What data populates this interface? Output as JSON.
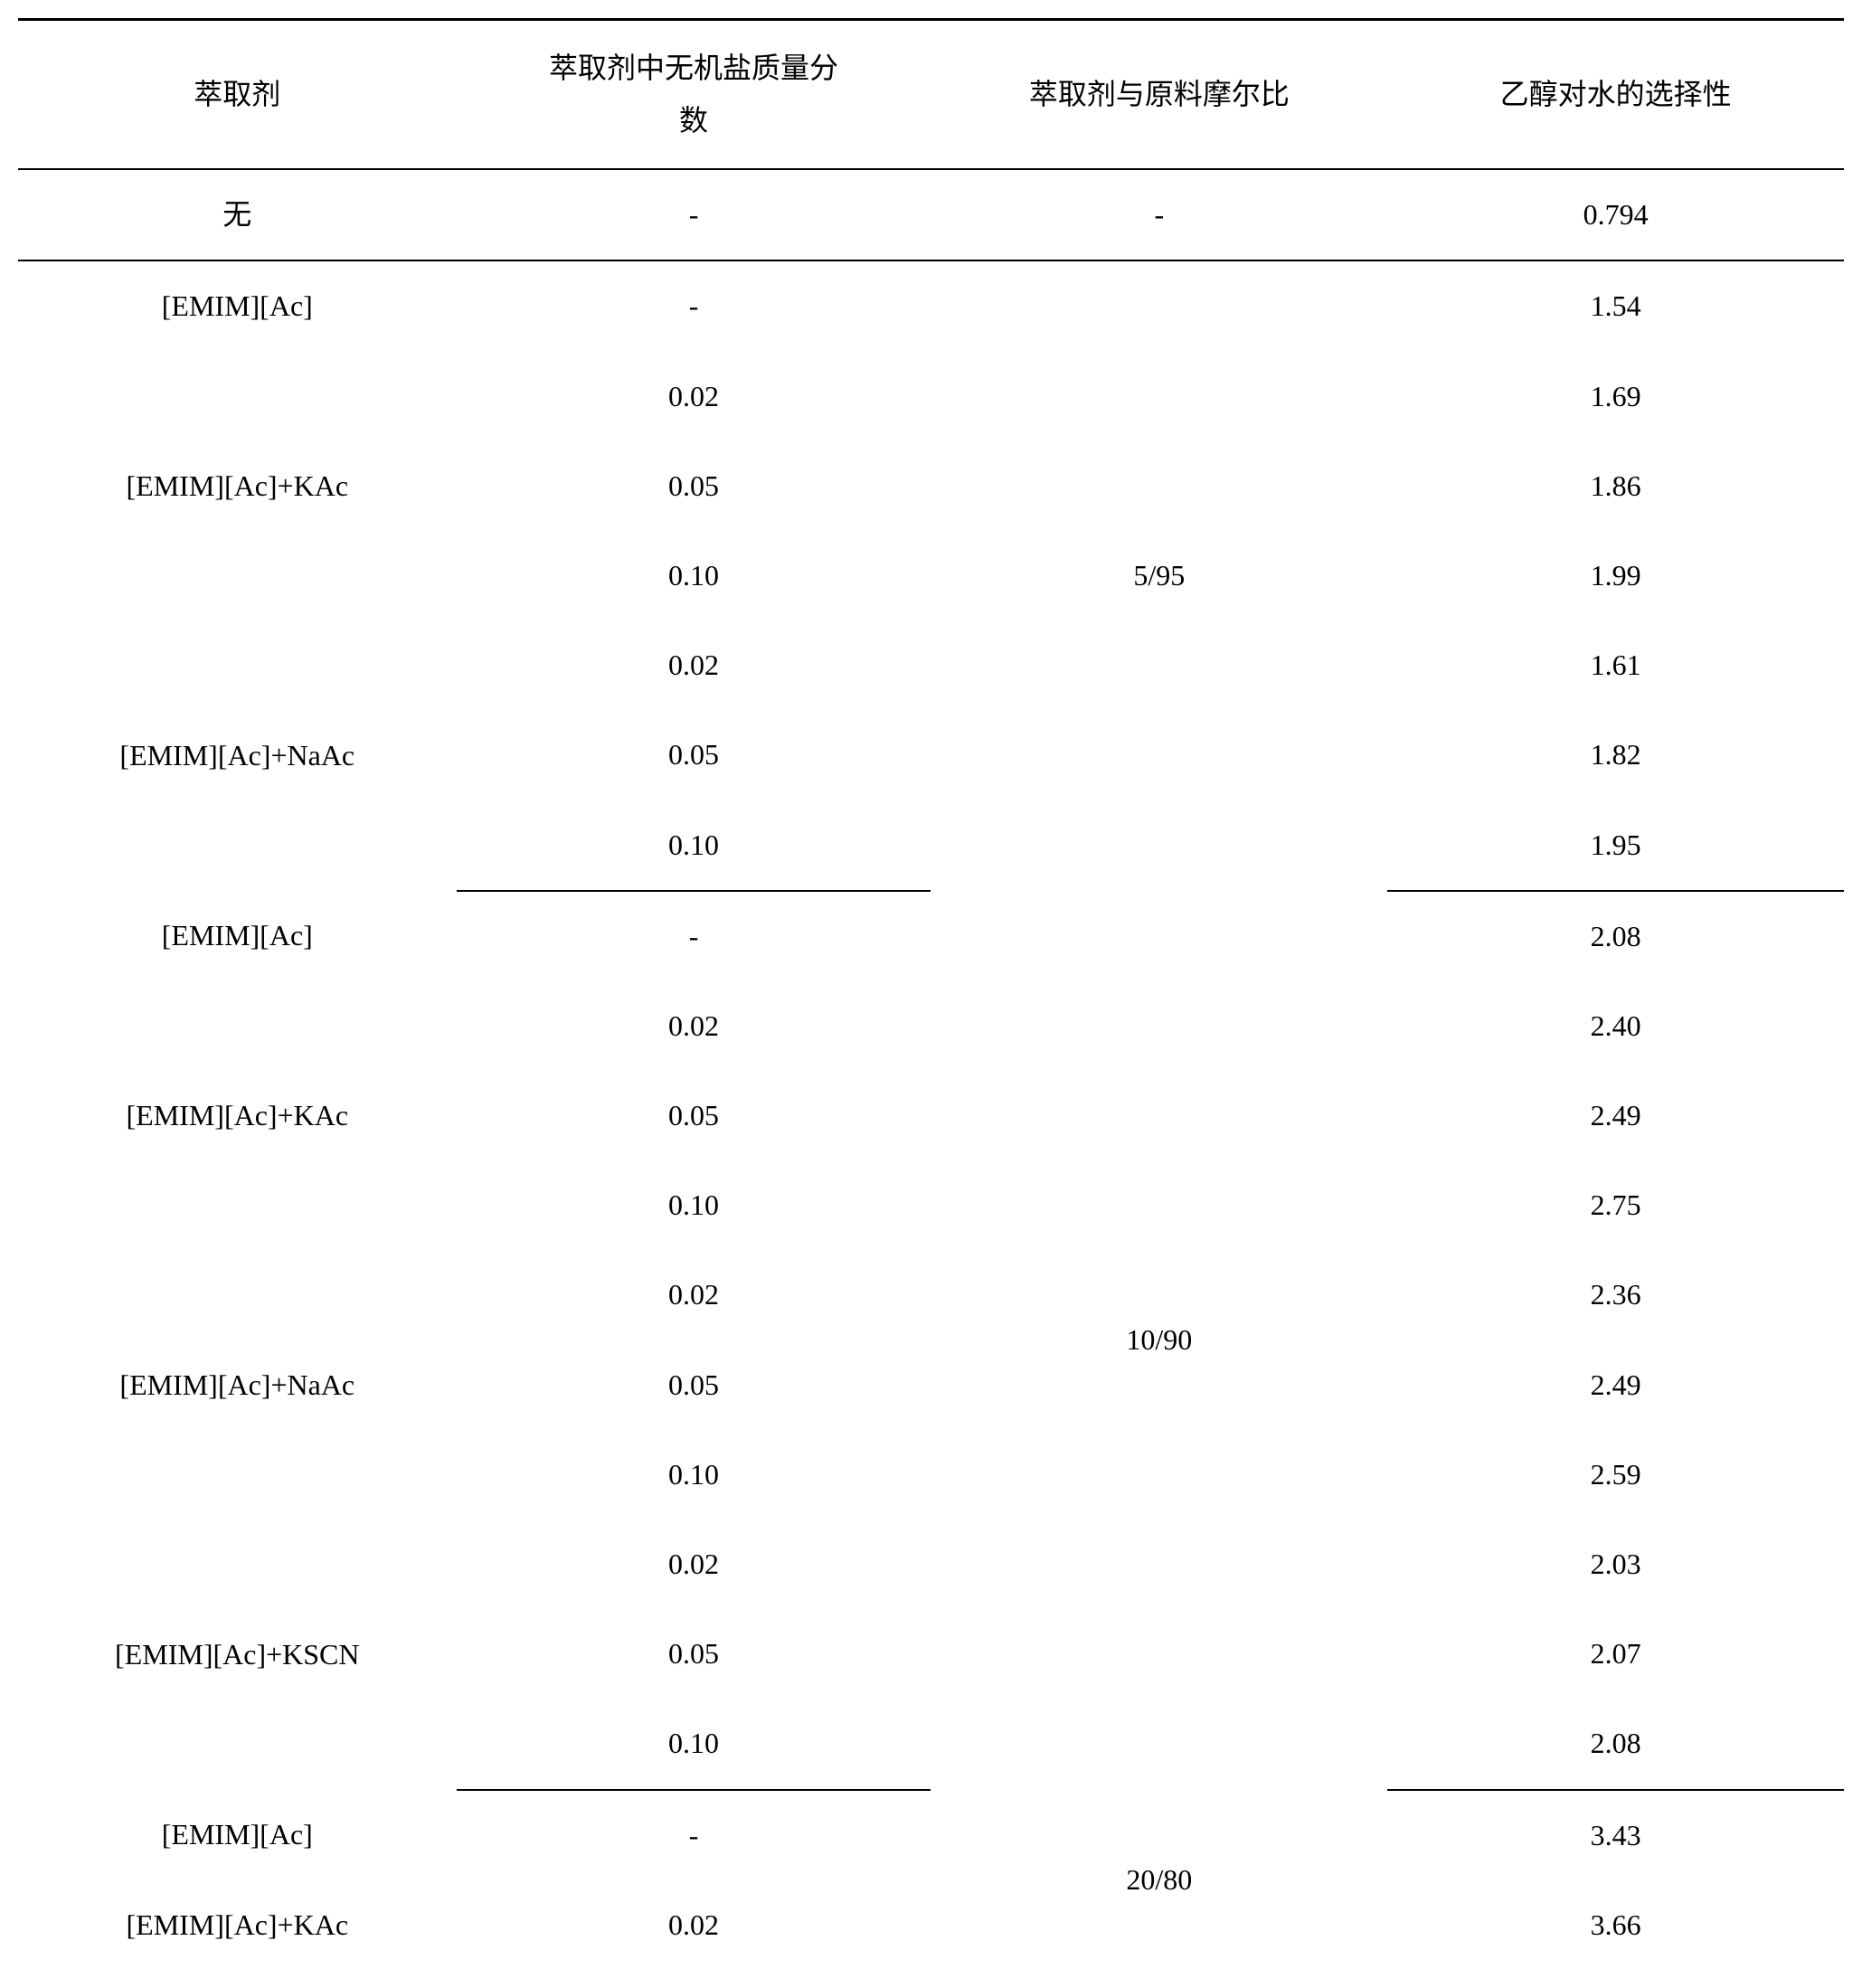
{
  "table": {
    "headers": {
      "extractant": "萃取剂",
      "salt_fraction": "萃取剂中无机盐质量分\n数",
      "molar_ratio": "萃取剂与原料摩尔比",
      "selectivity": "乙醇对水的选择性"
    },
    "sections": [
      {
        "ratio": "-",
        "groups": [
          {
            "extractant": "无",
            "rows": [
              {
                "fraction": "-",
                "selectivity": "0.794"
              }
            ]
          }
        ]
      },
      {
        "ratio": "5/95",
        "groups": [
          {
            "extractant": "[EMIM][Ac]",
            "rows": [
              {
                "fraction": "-",
                "selectivity": "1.54"
              }
            ]
          },
          {
            "extractant": "[EMIM][Ac]+KAc",
            "rows": [
              {
                "fraction": "0.02",
                "selectivity": "1.69"
              },
              {
                "fraction": "0.05",
                "selectivity": "1.86"
              },
              {
                "fraction": "0.10",
                "selectivity": "1.99"
              }
            ]
          },
          {
            "extractant": "[EMIM][Ac]+NaAc",
            "rows": [
              {
                "fraction": "0.02",
                "selectivity": "1.61"
              },
              {
                "fraction": "0.05",
                "selectivity": "1.82"
              },
              {
                "fraction": "0.10",
                "selectivity": "1.95"
              }
            ]
          }
        ]
      },
      {
        "ratio": "10/90",
        "groups": [
          {
            "extractant": "[EMIM][Ac]",
            "rows": [
              {
                "fraction": "-",
                "selectivity": "2.08"
              }
            ]
          },
          {
            "extractant": "[EMIM][Ac]+KAc",
            "rows": [
              {
                "fraction": "0.02",
                "selectivity": "2.40"
              },
              {
                "fraction": "0.05",
                "selectivity": "2.49"
              },
              {
                "fraction": "0.10",
                "selectivity": "2.75"
              }
            ]
          },
          {
            "extractant": "[EMIM][Ac]+NaAc",
            "rows": [
              {
                "fraction": "0.02",
                "selectivity": "2.36"
              },
              {
                "fraction": "0.05",
                "selectivity": "2.49"
              },
              {
                "fraction": "0.10",
                "selectivity": "2.59"
              }
            ]
          },
          {
            "extractant": "[EMIM][Ac]+KSCN",
            "rows": [
              {
                "fraction": "0.02",
                "selectivity": "2.03"
              },
              {
                "fraction": "0.05",
                "selectivity": "2.07"
              },
              {
                "fraction": "0.10",
                "selectivity": "2.08"
              }
            ]
          }
        ]
      },
      {
        "ratio": "20/80",
        "no_bottom_border": true,
        "groups": [
          {
            "extractant": "[EMIM][Ac]",
            "rows": [
              {
                "fraction": "-",
                "selectivity": "3.43"
              }
            ]
          },
          {
            "extractant": "[EMIM][Ac]+KAc",
            "rows": [
              {
                "fraction": "0.02",
                "selectivity": "3.66"
              }
            ]
          }
        ]
      }
    ]
  },
  "style": {
    "background_color": "#ffffff",
    "text_color": "#000000",
    "border_color": "#000000",
    "font_family": "Times New Roman, SimSun, serif",
    "base_font_size": 32
  }
}
